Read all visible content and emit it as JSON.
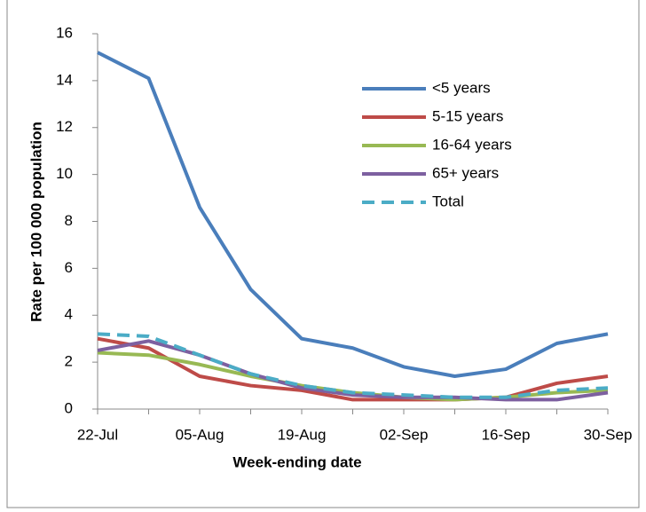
{
  "chart_data": {
    "type": "line",
    "x_label": "Week-ending date",
    "y_label": "Rate per 100 000 population",
    "categories": [
      "22-Jul",
      null,
      "05-Aug",
      null,
      "19-Aug",
      null,
      "02-Sep",
      null,
      "16-Sep",
      null,
      "30-Sep"
    ],
    "series": [
      {
        "name": "<5 years",
        "color": "#4a7ebb",
        "values": [
          15.2,
          14.1,
          8.6,
          5.1,
          3.0,
          2.6,
          1.8,
          1.4,
          1.7,
          2.8,
          3.2
        ]
      },
      {
        "name": "5-15 years",
        "color": "#be4b48",
        "values": [
          3.0,
          2.6,
          1.4,
          1.0,
          0.8,
          0.4,
          0.4,
          0.4,
          0.5,
          1.1,
          1.4
        ]
      },
      {
        "name": "16-64 years",
        "color": "#98b954",
        "values": [
          2.4,
          2.3,
          1.9,
          1.4,
          1.0,
          0.7,
          0.5,
          0.4,
          0.5,
          0.7,
          0.8
        ]
      },
      {
        "name": "65+ years",
        "color": "#7d60a0",
        "values": [
          2.5,
          2.9,
          2.3,
          1.5,
          0.9,
          0.6,
          0.5,
          0.5,
          0.4,
          0.4,
          0.7
        ]
      },
      {
        "name": "Total",
        "color": "#4bacc6",
        "dashed": true,
        "values": [
          3.2,
          3.1,
          2.3,
          1.5,
          1.0,
          0.7,
          0.6,
          0.5,
          0.5,
          0.8,
          0.9
        ]
      }
    ],
    "ylim": [
      0,
      16
    ],
    "yticks": [
      0,
      2,
      4,
      6,
      8,
      10,
      12,
      14,
      16
    ],
    "legend": "upper-right"
  }
}
